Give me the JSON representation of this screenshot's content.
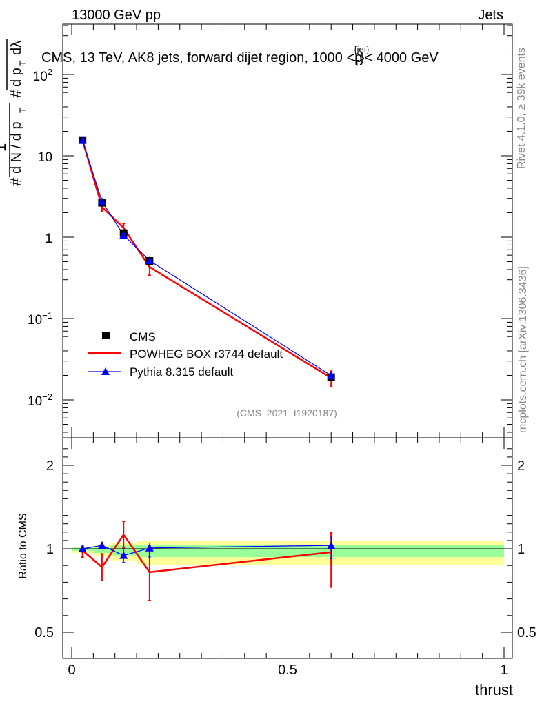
{
  "header": {
    "energy_label": "13000 GeV pp",
    "category_label": "Jets"
  },
  "side": {
    "rivet": "Rivet 4.1.0, ≥ 39k events",
    "mcplots": "mcplots.cern.ch [arXiv:1306.3436]"
  },
  "top_panel": {
    "title": "CMS, 13 TeV, AK8 jets, forward dijet region, 1000 <p",
    "title_sup": "{jet}",
    "title_sub": "T",
    "title_end": "}< 4000 GeV",
    "ylabel": "1/(dN/dp_T) dN/(dp_T dλ)",
    "analysis_id": "(CMS_2021_I1920187)"
  },
  "bottom_panel": {
    "ylabel": "Ratio to CMS",
    "xlabel": "thrust"
  },
  "legend": [
    {
      "name": "CMS",
      "color": "#000000",
      "marker": "square"
    },
    {
      "name": "POWHEG BOX r3744 default",
      "color": "#ff0000",
      "marker": "line"
    },
    {
      "name": "Pythia 8.315 default",
      "color": "#0000ff",
      "marker": "triangle"
    }
  ],
  "chart_data": {
    "type": "line",
    "x": [
      0.025,
      0.07,
      0.12,
      0.18,
      0.6
    ],
    "xlim": [
      0,
      1
    ],
    "xticks": [
      "0",
      "0.5",
      "1"
    ],
    "ylim_log": [
      0.004,
      400
    ],
    "yticks": [
      "10−2",
      "10−1",
      "1",
      "10",
      "10²"
    ],
    "series": [
      {
        "name": "CMS",
        "values": [
          15.6,
          2.65,
          1.12,
          0.51,
          0.019
        ],
        "err": [
          0.4,
          0.12,
          0.05,
          0.03,
          0.001
        ]
      },
      {
        "name": "POWHEG BOX r3744 default",
        "values": [
          15.5,
          2.35,
          1.3,
          0.43,
          0.0186
        ],
        "err": [
          0.5,
          0.28,
          0.17,
          0.09,
          0.004
        ]
      },
      {
        "name": "Pythia 8.315 default",
        "values": [
          15.5,
          2.75,
          1.06,
          0.515,
          0.0199
        ],
        "err": [
          0.2,
          0.1,
          0.05,
          0.03,
          0.002
        ]
      }
    ],
    "ratio": {
      "ylim": [
        0.4,
        2.3
      ],
      "yticks": [
        "0.5",
        "1",
        "2"
      ],
      "series": [
        {
          "name": "POWHEG BOX r3744 default",
          "values": [
            0.99,
            0.89,
            1.17,
            0.86,
            0.98
          ],
          "err": [
            0.04,
            0.08,
            0.16,
            0.17,
            0.21
          ]
        },
        {
          "name": "Pythia 8.315 default",
          "values": [
            1.0,
            1.04,
            0.96,
            1.01,
            1.04
          ],
          "err": [
            0.02,
            0.04,
            0.04,
            0.06,
            0.1
          ]
        }
      ],
      "bands": [
        {
          "x0": 0.0,
          "x1": 0.05,
          "stat": 0.012,
          "total": 0.025
        },
        {
          "x0": 0.05,
          "x1": 0.09,
          "stat": 0.025,
          "total": 0.045
        },
        {
          "x0": 0.09,
          "x1": 0.15,
          "stat": 0.04,
          "total": 0.07
        },
        {
          "x0": 0.15,
          "x1": 0.2,
          "stat": 0.05,
          "total": 0.095
        },
        {
          "x0": 0.2,
          "x1": 1.0,
          "stat": 0.05,
          "total": 0.095
        }
      ]
    }
  }
}
